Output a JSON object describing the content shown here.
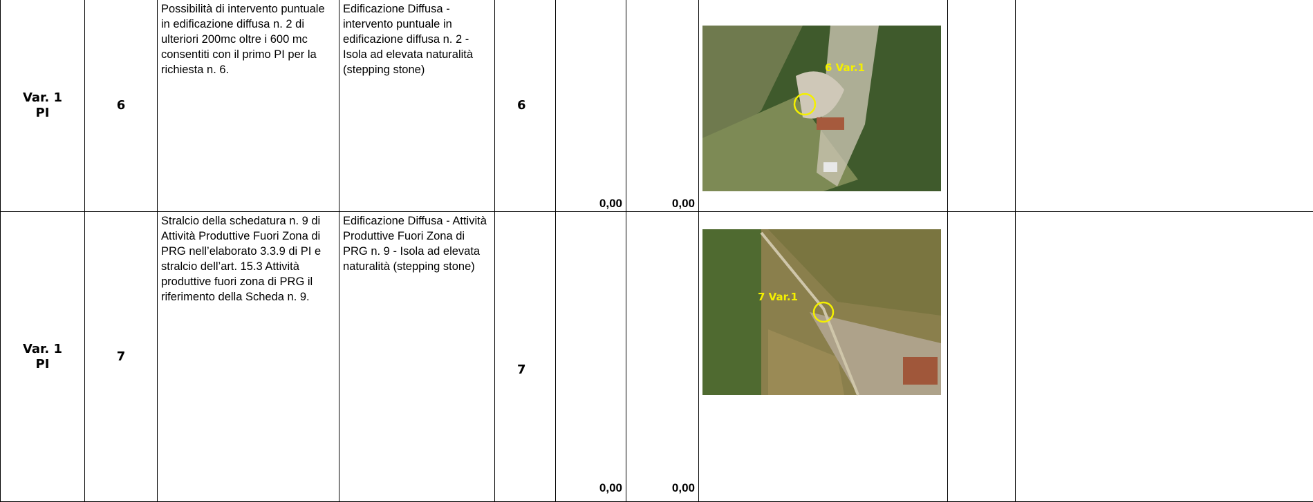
{
  "table": {
    "rows": [
      [
        "Var. 1\nPI",
        "6",
        "Possibilità di intervento puntuale in edificazione diffusa n. 2 di ulteriori 200mc oltre i 600 mc consentiti con il primo PI per la richiesta n. 6.",
        "Edificazione Diffusa - intervento puntuale in edificazione diffusa n. 2 - Isola ad elevata naturalità (stepping stone)",
        "6",
        "0,00",
        "0,00",
        "6 Var.1",
        "",
        ""
      ],
      [
        "Var. 1\nPI",
        "7",
        "Stralcio della schedatura n. 9 di Attività Produttive Fuori Zona di PRG nell’elaborato 3.3.9 di PI e stralcio dell’art. 15.3 Attività produttive fuori zona di PRG il riferimento della Scheda n. 9.",
        "Edificazione Diffusa - Attività Produttive Fuori Zona di PRG n. 9 - Isola ad elevata naturalità (stepping stone)",
        "7",
        "0,00",
        "0,00",
        "7 Var.1",
        "",
        ""
      ]
    ]
  }
}
